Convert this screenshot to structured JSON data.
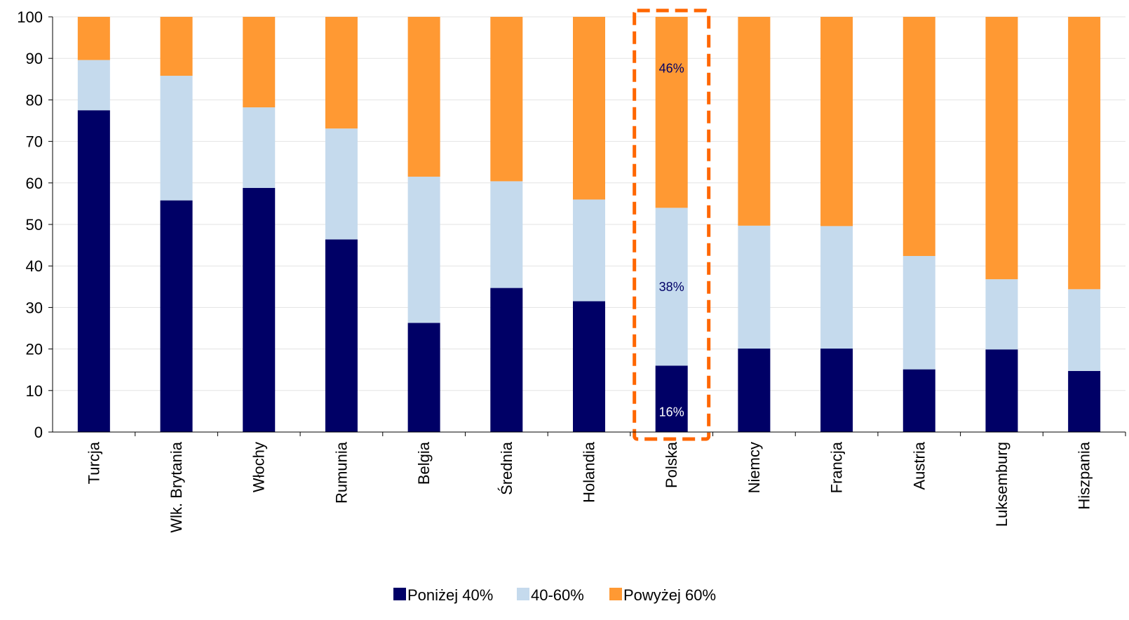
{
  "chart_data": {
    "type": "bar",
    "stacked": true,
    "categories": [
      "Turcja",
      "Wlk. Brytania",
      "Włochy",
      "Rumunia",
      "Belgia",
      "Średnia",
      "Holandia",
      "Polska",
      "Niemcy",
      "Francja",
      "Austria",
      "Luksemburg",
      "Hiszpania"
    ],
    "series": [
      {
        "name": "Poniżej 40%",
        "color": "#000066",
        "values": [
          77.5,
          55.8,
          58.8,
          46.4,
          26.3,
          34.7,
          31.5,
          16,
          20.1,
          20.1,
          15.1,
          19.9,
          14.7
        ]
      },
      {
        "name": "40-60%",
        "color": "#C5DAED",
        "values": [
          12.1,
          30.0,
          19.4,
          26.7,
          35.2,
          25.7,
          24.5,
          38,
          29.6,
          29.5,
          27.3,
          16.9,
          19.7
        ]
      },
      {
        "name": "Powyżej 60%",
        "color": "#FF9933",
        "values": [
          10.4,
          14.2,
          21.8,
          26.9,
          38.5,
          39.6,
          44.0,
          46,
          50.3,
          50.4,
          57.6,
          63.2,
          65.6
        ]
      }
    ],
    "ylim": [
      0,
      100
    ],
    "yticks": [
      "0",
      "10",
      "20",
      "30",
      "40",
      "50",
      "60",
      "70",
      "80",
      "90",
      "100"
    ],
    "grid": true,
    "legend_position": "bottom",
    "highlight_category": "Polska",
    "highlight_color": "#FF6600",
    "data_labels": [
      {
        "category": "Polska",
        "series": "Powyżej 60%",
        "text": "46%",
        "color": "#000066"
      },
      {
        "category": "Polska",
        "series": "40-60%",
        "text": "38%",
        "color": "#000066"
      },
      {
        "category": "Polska",
        "series": "Poniżej 40%",
        "text": "16%",
        "color": "#FFFFFF"
      }
    ]
  }
}
